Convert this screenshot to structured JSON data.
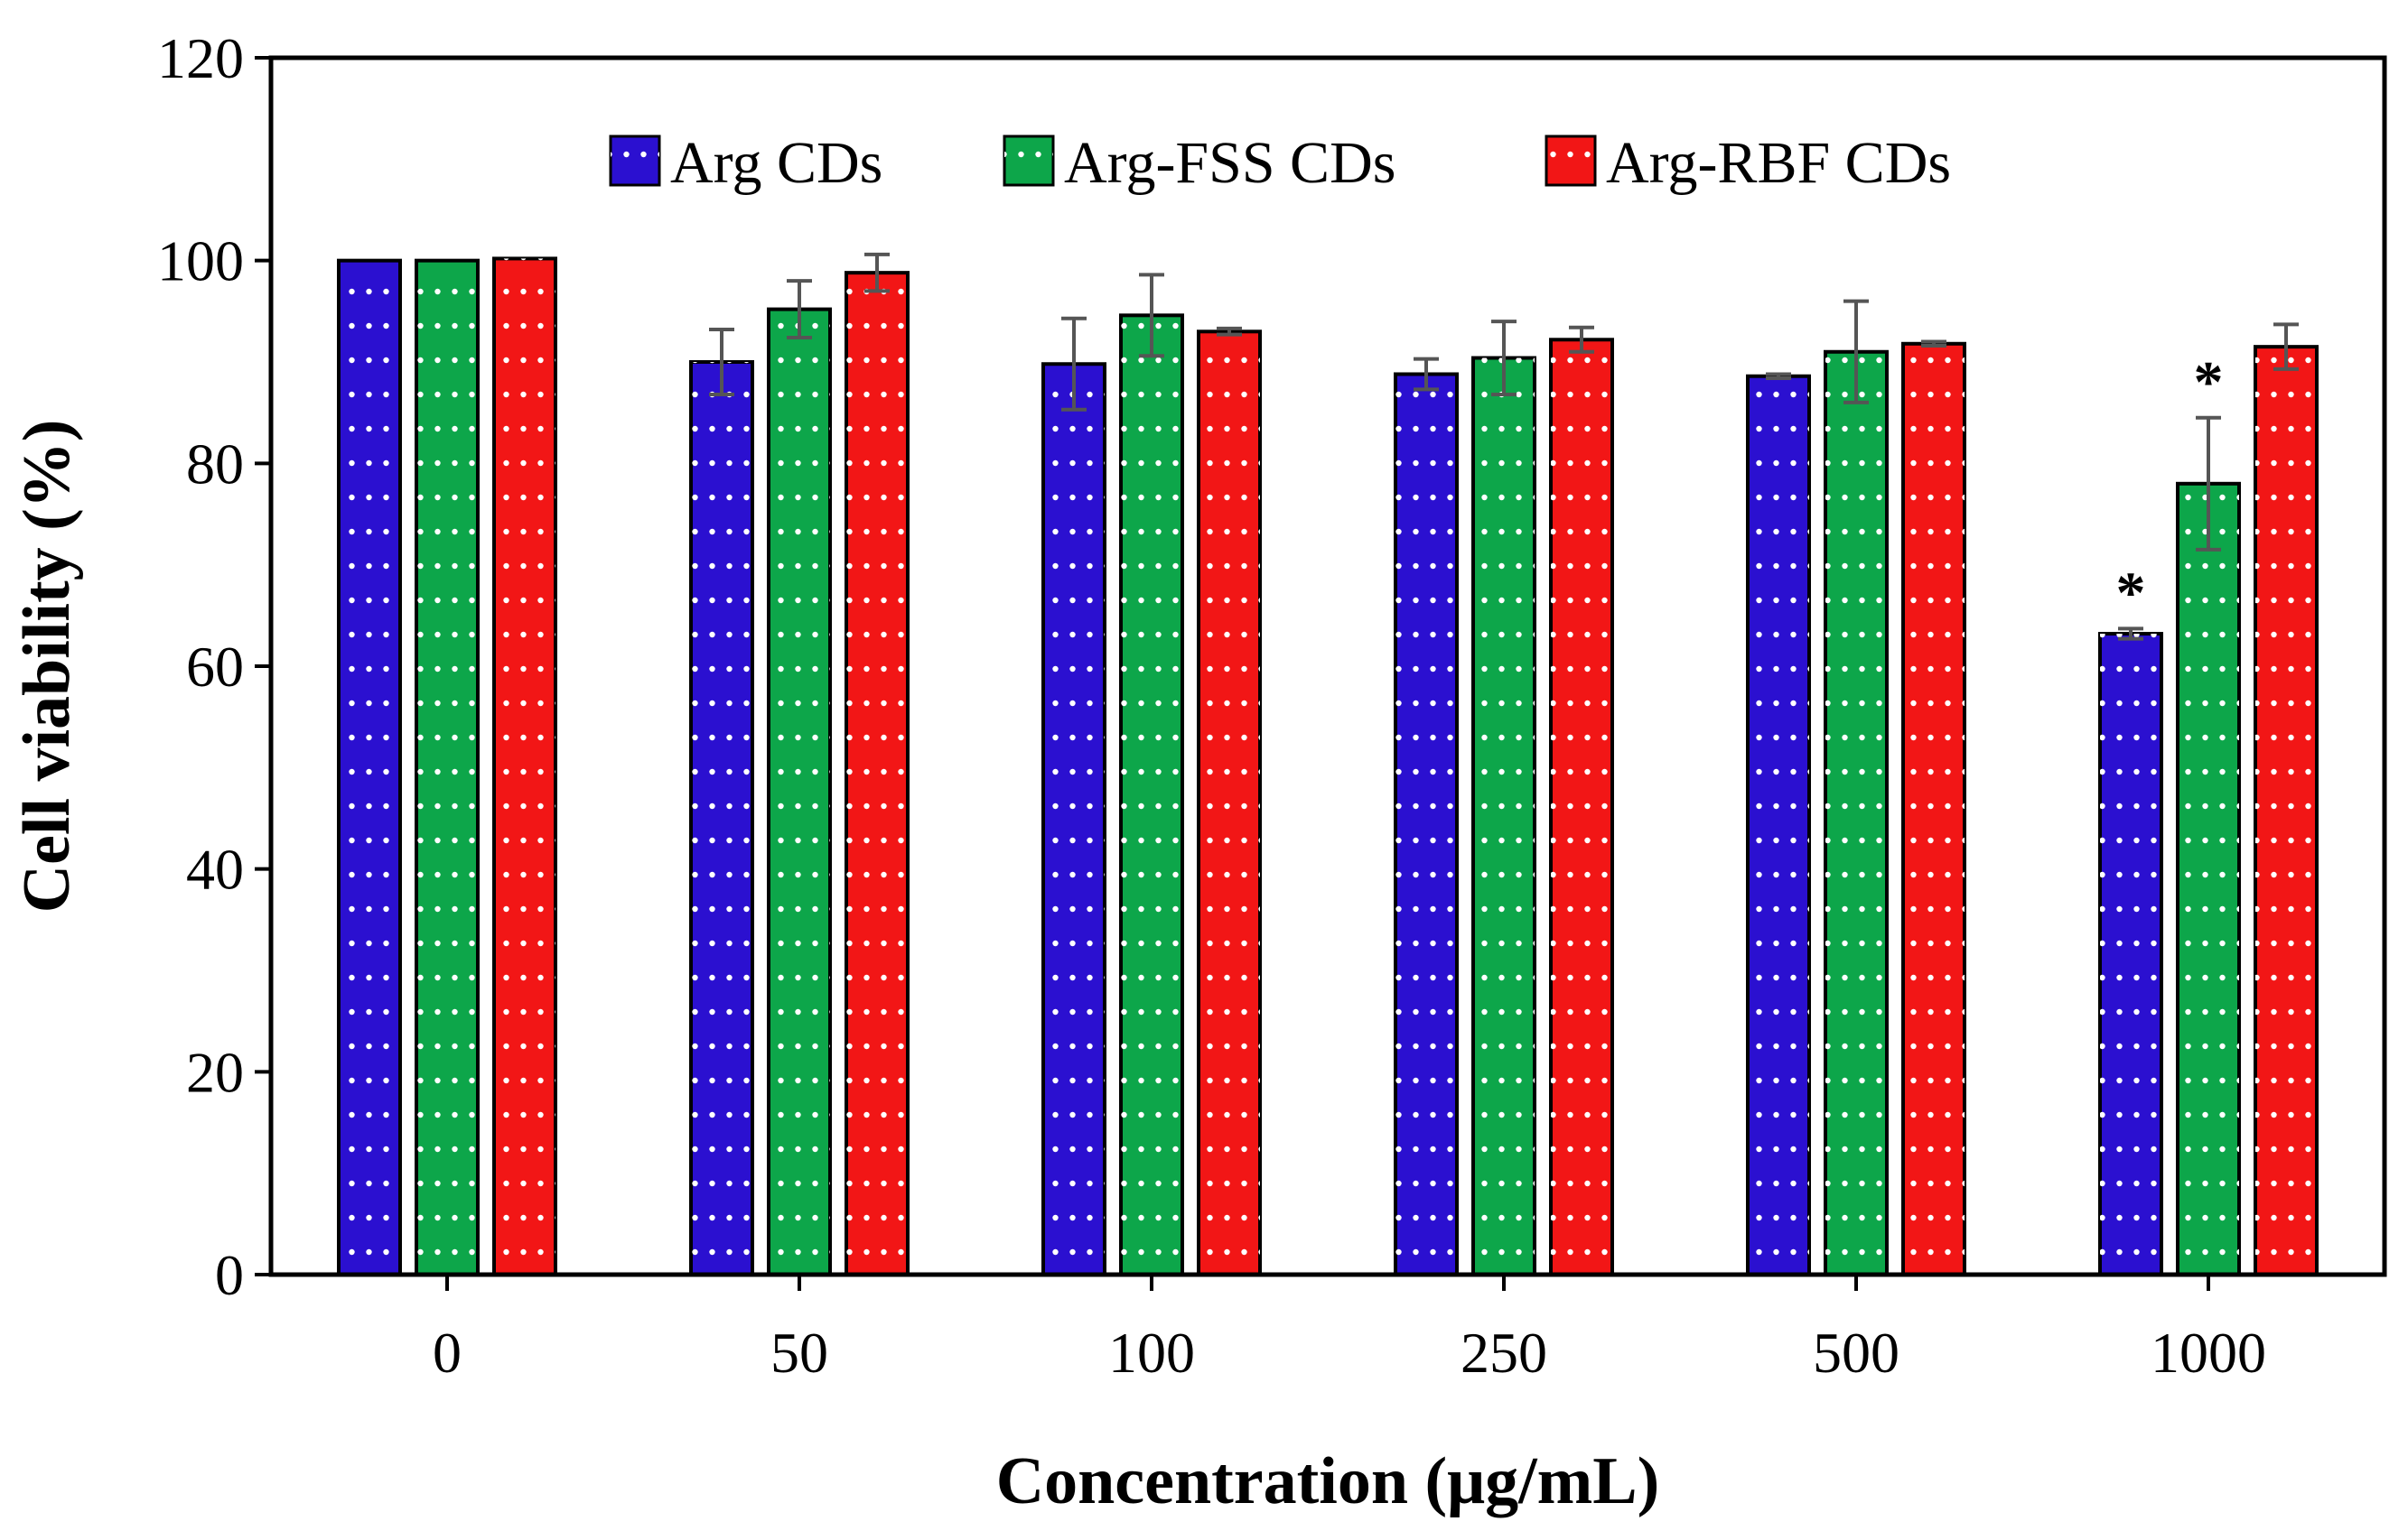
{
  "chart_data": {
    "type": "bar",
    "title": "",
    "xlabel": "Concentration (μg/mL)",
    "ylabel": "Cell viability (%)",
    "ylim": [
      0,
      120
    ],
    "yticks": [
      "0",
      "20",
      "40",
      "60",
      "80",
      "100",
      "120"
    ],
    "categories": [
      "0",
      "50",
      "100",
      "250",
      "500",
      "1000"
    ],
    "legend_position": "top-center",
    "series": [
      {
        "name": "Arg CDs",
        "color": "#2b10d0",
        "values": [
          100,
          90,
          89.8,
          88.8,
          88.6,
          63.2
        ],
        "errors": [
          0,
          3.2,
          4.5,
          1.5,
          0.2,
          0.5
        ],
        "markers": [
          "",
          "",
          "",
          "",
          "",
          "*"
        ]
      },
      {
        "name": "Arg-FSS CDs",
        "color": "#0da64a",
        "values": [
          100,
          95.2,
          94.6,
          90.4,
          91,
          78
        ],
        "errors": [
          0,
          2.8,
          4,
          3.6,
          5,
          6.5
        ],
        "markers": [
          "",
          "",
          "",
          "",
          "",
          "*"
        ]
      },
      {
        "name": "Arg-RBF CDs",
        "color": "#f21616",
        "values": [
          100.2,
          98.8,
          93,
          92.2,
          91.8,
          91.5
        ],
        "errors": [
          0,
          1.8,
          0.3,
          1.2,
          0.2,
          2.2
        ],
        "markers": [
          "",
          "",
          "",
          "",
          "",
          ""
        ]
      }
    ]
  }
}
